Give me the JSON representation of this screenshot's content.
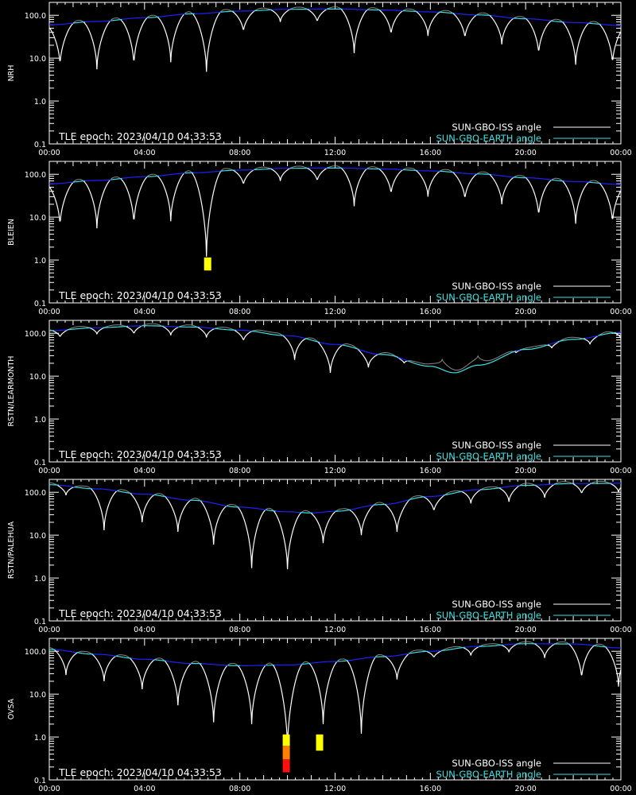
{
  "colors": {
    "background": "#000000",
    "axes": "#ffffff",
    "iss_angle": "#ffffff",
    "earth_angle_light": "#40e0e0",
    "earth_angle_dark": "#2020ff",
    "marker_yellow": "#ffff00",
    "marker_orange": "#ff8000",
    "marker_red": "#ff1010"
  },
  "legend": {
    "iss_label": "SUN-GBO-ISS angle",
    "earth_label": "SUN-GBO-EARTH angle"
  },
  "epoch_text": "TLE epoch: 2023/04/10 04:33:53",
  "x_ticks": [
    "00:00",
    "04:00",
    "08:00",
    "12:00",
    "16:00",
    "20:00",
    "00:00"
  ],
  "y_ticks": [
    "0.1",
    "1.0",
    "10.0",
    "100.0"
  ],
  "chart_data": [
    {
      "type": "line",
      "ylabel": "NRH",
      "yscale": "log",
      "ylim": [
        0.1,
        200
      ],
      "xlim_hours": [
        0,
        24
      ],
      "grid": false,
      "legend_position": "bottom-right",
      "series": [
        {
          "name": "SUN-GBO-EARTH angle",
          "x_hours": [
            0,
            2,
            4,
            6,
            8,
            10,
            12,
            14,
            16,
            18,
            20,
            22,
            24
          ],
          "values": [
            60,
            72,
            88,
            108,
            125,
            138,
            140,
            133,
            120,
            102,
            83,
            68,
            58
          ]
        },
        {
          "name": "SUN-GBO-ISS angle",
          "minima": [
            {
              "x": 0.45,
              "y": 6.5
            },
            {
              "x": 2.0,
              "y": 5.5
            },
            {
              "x": 3.55,
              "y": 6.5
            },
            {
              "x": 5.1,
              "y": 8
            },
            {
              "x": 6.6,
              "y": 4.8
            },
            {
              "x": 8.15,
              "y": 40
            },
            {
              "x": 9.7,
              "y": 70
            },
            {
              "x": 11.25,
              "y": 68
            },
            {
              "x": 12.8,
              "y": 13
            },
            {
              "x": 14.35,
              "y": 34
            },
            {
              "x": 15.9,
              "y": 33
            },
            {
              "x": 17.45,
              "y": 28
            },
            {
              "x": 19.0,
              "y": 21
            },
            {
              "x": 20.55,
              "y": 12
            },
            {
              "x": 22.1,
              "y": 7
            },
            {
              "x": 23.65,
              "y": 7
            }
          ]
        }
      ],
      "markers": []
    },
    {
      "type": "line",
      "ylabel": "BLEIEN",
      "yscale": "log",
      "ylim": [
        0.1,
        200
      ],
      "xlim_hours": [
        0,
        24
      ],
      "grid": false,
      "legend_position": "bottom-right",
      "series": [
        {
          "name": "SUN-GBO-EARTH angle",
          "x_hours": [
            0,
            2,
            4,
            6,
            8,
            10,
            12,
            14,
            16,
            18,
            20,
            22,
            24
          ],
          "values": [
            60,
            72,
            88,
            108,
            125,
            138,
            140,
            133,
            120,
            102,
            83,
            68,
            58
          ]
        },
        {
          "name": "SUN-GBO-ISS angle",
          "minima": [
            {
              "x": 0.45,
              "y": 6
            },
            {
              "x": 2.0,
              "y": 5.5
            },
            {
              "x": 3.55,
              "y": 6.5
            },
            {
              "x": 5.1,
              "y": 8
            },
            {
              "x": 6.6,
              "y": 1.2
            },
            {
              "x": 8.15,
              "y": 55
            },
            {
              "x": 9.7,
              "y": 70
            },
            {
              "x": 11.25,
              "y": 68
            },
            {
              "x": 12.8,
              "y": 18
            },
            {
              "x": 14.35,
              "y": 33
            },
            {
              "x": 15.9,
              "y": 30
            },
            {
              "x": 17.45,
              "y": 25
            },
            {
              "x": 19.0,
              "y": 20
            },
            {
              "x": 20.55,
              "y": 10
            },
            {
              "x": 22.1,
              "y": 7
            },
            {
              "x": 23.65,
              "y": 7
            }
          ]
        }
      ],
      "markers": [
        {
          "x_hours": 6.65,
          "segments": [
            {
              "y_top": 1.15,
              "y_bottom": 0.57,
              "color": "#ffff00"
            }
          ]
        }
      ]
    },
    {
      "type": "line",
      "ylabel": "RSTN/LEARMONTH",
      "yscale": "log",
      "ylim": [
        0.1,
        200
      ],
      "xlim_hours": [
        0,
        24
      ],
      "grid": false,
      "legend_position": "bottom-right",
      "series": [
        {
          "name": "SUN-GBO-EARTH angle",
          "x_hours": [
            0,
            2,
            4,
            6,
            8,
            10,
            12,
            14,
            16,
            17,
            18,
            20,
            22,
            24
          ],
          "values": [
            115,
            135,
            150,
            140,
            118,
            88,
            55,
            32,
            17,
            12,
            18,
            42,
            72,
            105
          ]
        },
        {
          "name": "SUN-GBO-ISS angle",
          "minima": [
            {
              "x": 0.45,
              "y": 80
            },
            {
              "x": 2.0,
              "y": 95
            },
            {
              "x": 3.55,
              "y": 95
            },
            {
              "x": 5.1,
              "y": 90
            },
            {
              "x": 6.6,
              "y": 80
            },
            {
              "x": 8.15,
              "y": 65
            },
            {
              "x": 10.3,
              "y": 24
            },
            {
              "x": 11.8,
              "y": 12
            },
            {
              "x": 13.4,
              "y": 16
            },
            {
              "x": 14.9,
              "y": 20
            },
            {
              "x": 16.5,
              "y": 25
            },
            {
              "x": 18.0,
              "y": 30
            },
            {
              "x": 19.6,
              "y": 35
            },
            {
              "x": 21.1,
              "y": 45
            },
            {
              "x": 22.7,
              "y": 55
            },
            {
              "x": 24.0,
              "y": 75
            }
          ]
        }
      ],
      "markers": []
    },
    {
      "type": "line",
      "ylabel": "RSTN/PALEHUA",
      "yscale": "log",
      "ylim": [
        0.1,
        200
      ],
      "xlim_hours": [
        0,
        24
      ],
      "grid": false,
      "legend_position": "bottom-right",
      "series": [
        {
          "name": "SUN-GBO-EARTH angle",
          "x_hours": [
            0,
            2,
            4,
            6,
            8,
            10,
            11,
            12,
            14,
            16,
            18,
            20,
            22,
            24
          ],
          "values": [
            150,
            120,
            90,
            65,
            45,
            35,
            33,
            36,
            52,
            80,
            115,
            145,
            160,
            162
          ]
        },
        {
          "name": "SUN-GBO-ISS angle",
          "minima": [
            {
              "x": 0.7,
              "y": 85
            },
            {
              "x": 2.3,
              "y": 13
            },
            {
              "x": 3.9,
              "y": 20
            },
            {
              "x": 5.4,
              "y": 12
            },
            {
              "x": 6.9,
              "y": 6
            },
            {
              "x": 8.5,
              "y": 1.7
            },
            {
              "x": 10.0,
              "y": 1.6
            },
            {
              "x": 11.5,
              "y": 6.5
            },
            {
              "x": 13.1,
              "y": 10
            },
            {
              "x": 14.6,
              "y": 12
            },
            {
              "x": 16.15,
              "y": 35
            },
            {
              "x": 17.7,
              "y": 55
            },
            {
              "x": 19.3,
              "y": 60
            },
            {
              "x": 20.8,
              "y": 75
            },
            {
              "x": 22.35,
              "y": 90
            },
            {
              "x": 23.9,
              "y": 100
            }
          ]
        }
      ],
      "markers": []
    },
    {
      "type": "line",
      "ylabel": "OVSA",
      "yscale": "log",
      "ylim": [
        0.1,
        200
      ],
      "xlim_hours": [
        0,
        24
      ],
      "grid": false,
      "legend_position": "bottom-right",
      "series": [
        {
          "name": "SUN-GBO-EARTH angle",
          "x_hours": [
            0,
            2,
            4,
            6,
            8,
            10,
            12,
            14,
            16,
            18,
            20,
            22,
            24
          ],
          "values": [
            110,
            85,
            65,
            52,
            46,
            48,
            58,
            75,
            100,
            130,
            150,
            148,
            120
          ]
        },
        {
          "name": "SUN-GBO-ISS angle",
          "minima": [
            {
              "x": 0.7,
              "y": 28
            },
            {
              "x": 2.3,
              "y": 20
            },
            {
              "x": 3.9,
              "y": 13
            },
            {
              "x": 5.4,
              "y": 5.5
            },
            {
              "x": 6.9,
              "y": 2.2
            },
            {
              "x": 8.5,
              "y": 2.0
            },
            {
              "x": 10.0,
              "y": 0.5
            },
            {
              "x": 11.5,
              "y": 2.0
            },
            {
              "x": 13.1,
              "y": 1.2
            },
            {
              "x": 14.6,
              "y": 22
            },
            {
              "x": 16.15,
              "y": 70
            },
            {
              "x": 17.7,
              "y": 80
            },
            {
              "x": 19.3,
              "y": 95
            },
            {
              "x": 20.8,
              "y": 70
            },
            {
              "x": 22.35,
              "y": 22
            },
            {
              "x": 23.9,
              "y": 15
            }
          ]
        }
      ],
      "markers": [
        {
          "x_hours": 9.95,
          "segments": [
            {
              "y_top": 1.15,
              "y_bottom": 0.62,
              "color": "#ffff00"
            },
            {
              "y_top": 0.62,
              "y_bottom": 0.3,
              "color": "#ff8000"
            },
            {
              "y_top": 0.3,
              "y_bottom": 0.15,
              "color": "#ff1010"
            }
          ]
        },
        {
          "x_hours": 11.35,
          "segments": [
            {
              "y_top": 1.15,
              "y_bottom": 0.48,
              "color": "#ffff00"
            }
          ]
        }
      ]
    }
  ]
}
